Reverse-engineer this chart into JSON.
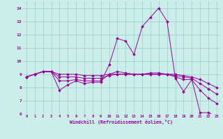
{
  "xlabel": "Windchill (Refroidissement éolien,°C)",
  "background_color": "#cceee8",
  "line_color": "#990099",
  "grid_color": "#99cccc",
  "xlim": [
    -0.5,
    23.5
  ],
  "ylim": [
    6,
    14.5
  ],
  "xticks": [
    0,
    1,
    2,
    3,
    4,
    5,
    6,
    7,
    8,
    9,
    10,
    11,
    12,
    13,
    14,
    15,
    16,
    17,
    18,
    19,
    20,
    21,
    22,
    23
  ],
  "yticks": [
    6,
    7,
    8,
    9,
    10,
    11,
    12,
    13,
    14
  ],
  "series": [
    [
      8.8,
      9.0,
      9.2,
      9.2,
      7.8,
      8.2,
      8.5,
      8.3,
      8.4,
      8.4,
      9.7,
      11.7,
      11.5,
      10.5,
      12.6,
      13.3,
      14.0,
      13.0,
      8.7,
      7.7,
      8.6,
      6.1,
      6.1,
      5.8
    ],
    [
      8.8,
      9.0,
      9.2,
      9.2,
      8.5,
      8.5,
      8.6,
      8.5,
      8.5,
      8.5,
      9.0,
      9.2,
      9.1,
      9.0,
      9.0,
      9.1,
      9.1,
      9.0,
      8.8,
      8.6,
      8.6,
      7.8,
      7.2,
      6.8
    ],
    [
      8.8,
      9.0,
      9.2,
      9.2,
      8.8,
      8.8,
      8.8,
      8.7,
      8.7,
      8.7,
      8.9,
      9.0,
      9.0,
      9.0,
      9.0,
      9.0,
      9.0,
      9.0,
      8.9,
      8.8,
      8.7,
      8.3,
      7.9,
      7.5
    ],
    [
      8.8,
      9.0,
      9.2,
      9.2,
      9.0,
      9.0,
      9.0,
      8.9,
      8.9,
      8.9,
      9.0,
      9.0,
      9.0,
      9.0,
      9.0,
      9.0,
      9.0,
      9.0,
      9.0,
      8.9,
      8.8,
      8.6,
      8.3,
      8.0
    ]
  ]
}
